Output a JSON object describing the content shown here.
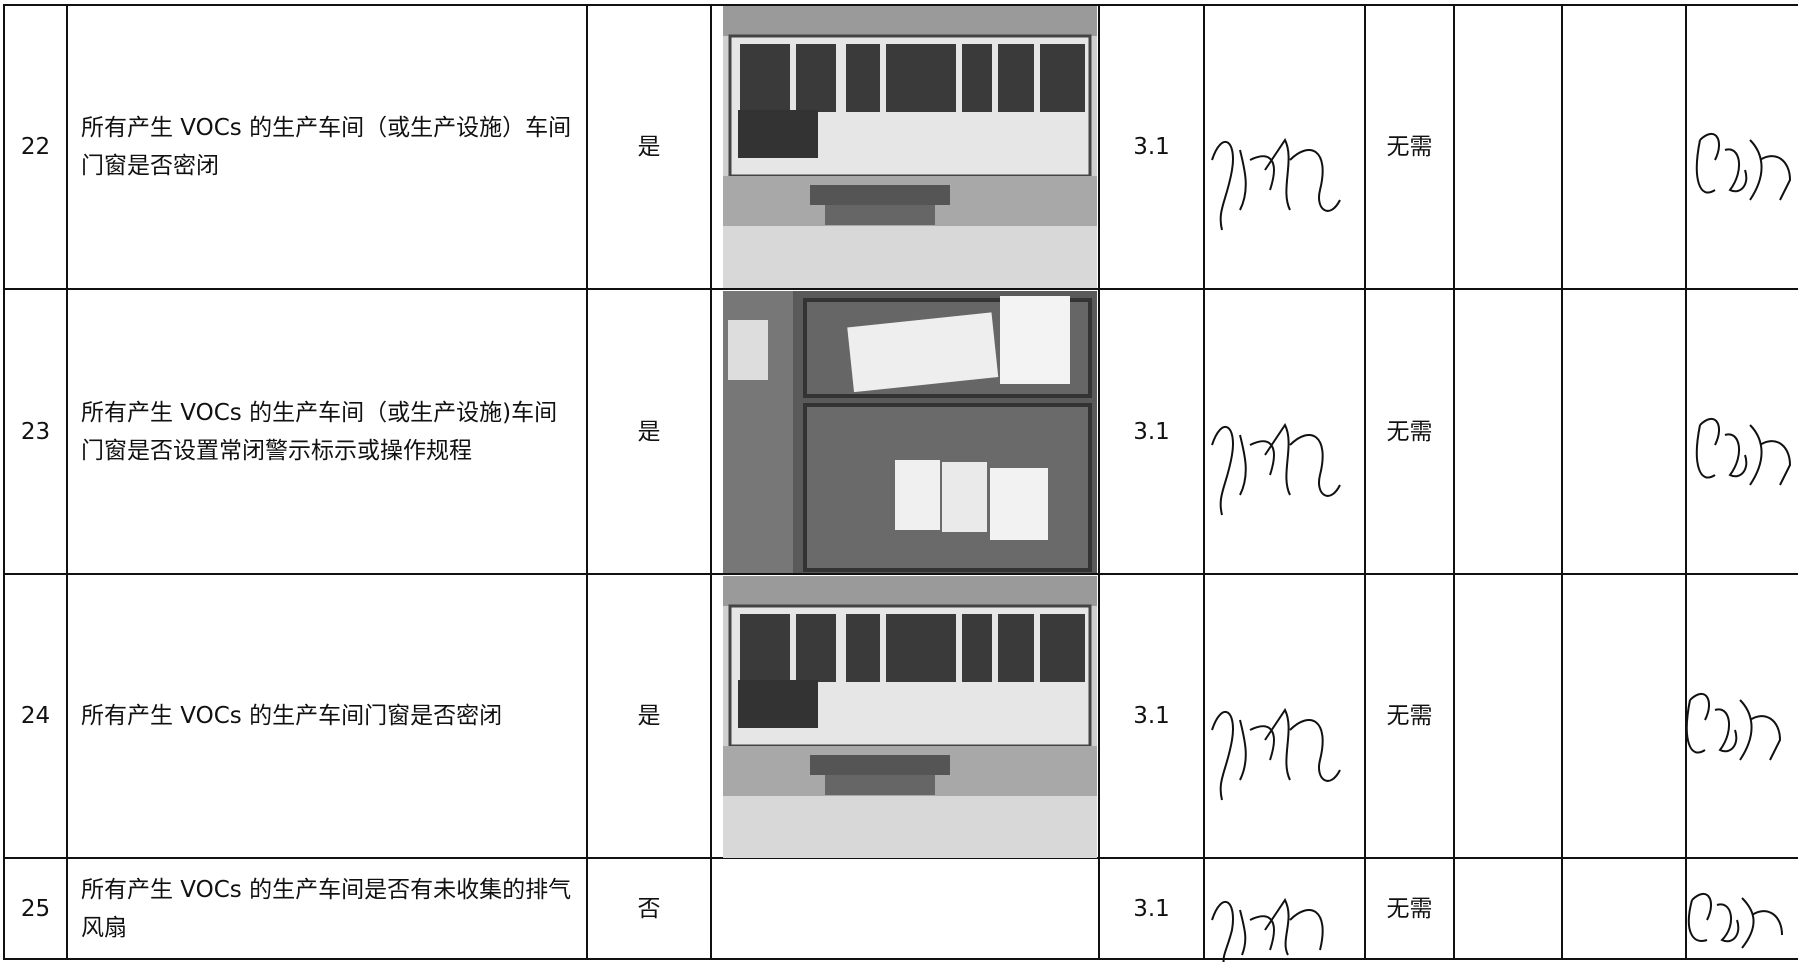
{
  "table": {
    "rows": [
      {
        "number": "22",
        "item": "所有产生 VOCs 的生产车间（或生产设施）车间门窗是否密闭",
        "result": "是",
        "score": "3.1",
        "remark": "无需"
      },
      {
        "number": "23",
        "item": "所有产生 VOCs 的生产车间（或生产设施)车间门窗是否设置常闭警示标示或操作规程",
        "result": "是",
        "score": "3.1",
        "remark": "无需"
      },
      {
        "number": "24",
        "item": "所有产生 VOCs 的生产车间门窗是否密闭",
        "result": "是",
        "score": "3.1",
        "remark": "无需"
      },
      {
        "number": "25",
        "item": "所有产生 VOCs 的生产车间是否有未收集的排气风扇",
        "result": "否",
        "score": "3.1",
        "remark": "无需"
      }
    ]
  }
}
